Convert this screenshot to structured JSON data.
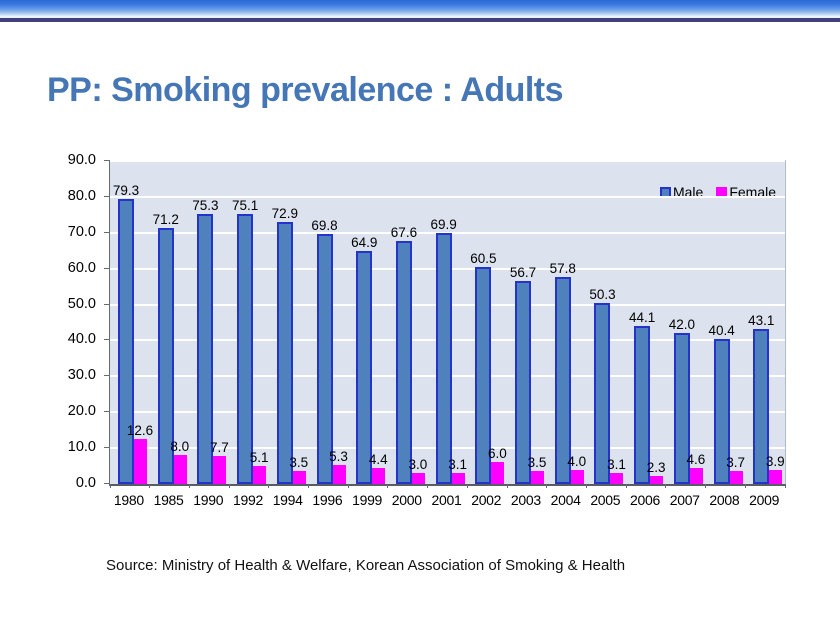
{
  "slide": {
    "title": "PP: Smoking prevalence : Adults",
    "source": "Source: Ministry of Health & Welfare, Korean Association of Smoking & Health"
  },
  "colors": {
    "title_text": "#4576b5",
    "plot_background": "#dce3ef",
    "gridline": "#ffffff",
    "male_fill": "#4f81bd",
    "male_border": "#2434cb",
    "female_fill": "#ff00ff",
    "banner_dark_line": "#40407e"
  },
  "chart_data": {
    "type": "bar",
    "title": "",
    "xlabel": "",
    "ylabel": "",
    "categories": [
      "1980",
      "1985",
      "1990",
      "1992",
      "1994",
      "1996",
      "1999",
      "2000",
      "2001",
      "2002",
      "2003",
      "2004",
      "2005",
      "2006",
      "2007",
      "2008",
      "2009"
    ],
    "series": [
      {
        "name": "Male",
        "color": "#4f81bd",
        "border_color": "#2434cb",
        "values": [
          79.3,
          71.2,
          75.3,
          75.1,
          72.9,
          69.8,
          64.9,
          67.6,
          69.9,
          60.5,
          56.7,
          57.8,
          50.3,
          44.1,
          42.0,
          40.4,
          43.1
        ]
      },
      {
        "name": "Female",
        "color": "#ff00ff",
        "values": [
          12.6,
          8.0,
          7.7,
          5.1,
          3.5,
          5.3,
          4.4,
          3.0,
          3.1,
          6.0,
          3.5,
          4.0,
          3.1,
          2.3,
          4.6,
          3.7,
          3.9
        ]
      }
    ],
    "ylim": [
      0,
      90
    ],
    "ytick_step": 10,
    "ytick_labels": [
      "0.0",
      "10.0",
      "20.0",
      "30.0",
      "40.0",
      "50.0",
      "60.0",
      "70.0",
      "80.0",
      "90.0"
    ],
    "grid": "horizontal white gridlines on",
    "legend_position": "top-right inside plot",
    "value_labels": "shown above every bar, one decimal"
  }
}
